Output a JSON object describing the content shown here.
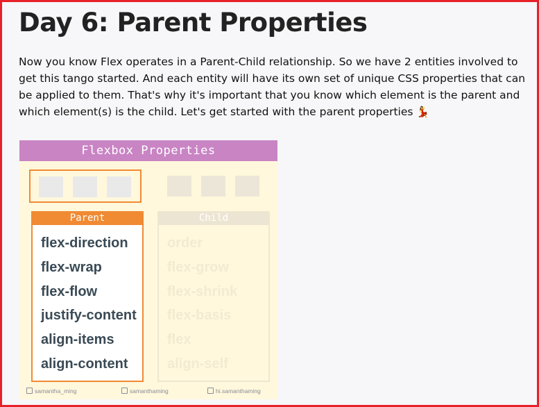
{
  "page": {
    "title": "Day 6: Parent Properties",
    "intro": "Now you know Flex operates in a Parent-Child relationship. So we have 2 entities involved to get this tango started. And each entity will have its own set of unique CSS properties that can be applied to them. That's why it's important that you know which element is the parent and which element(s) is the child. Let's get started with the parent properties",
    "emoji": "💃"
  },
  "card": {
    "header": "Flexbox Properties",
    "parent": {
      "label": "Parent",
      "properties": [
        "flex-direction",
        "flex-wrap",
        "flex-flow",
        "justify-content",
        "align-items",
        "align-content"
      ]
    },
    "child": {
      "label": "Child",
      "properties": [
        "order",
        "flex-grow",
        "flex-shrink",
        "flex-basis",
        "flex",
        "align-self"
      ]
    },
    "credits": [
      "samantha_ming",
      "samanthaming",
      "hi.samanthaming"
    ]
  },
  "colors": {
    "frame_border": "#e8202a",
    "header_bg": "#c984c4",
    "parent_accent": "#f08a33",
    "card_bg": "#fff8dc"
  }
}
